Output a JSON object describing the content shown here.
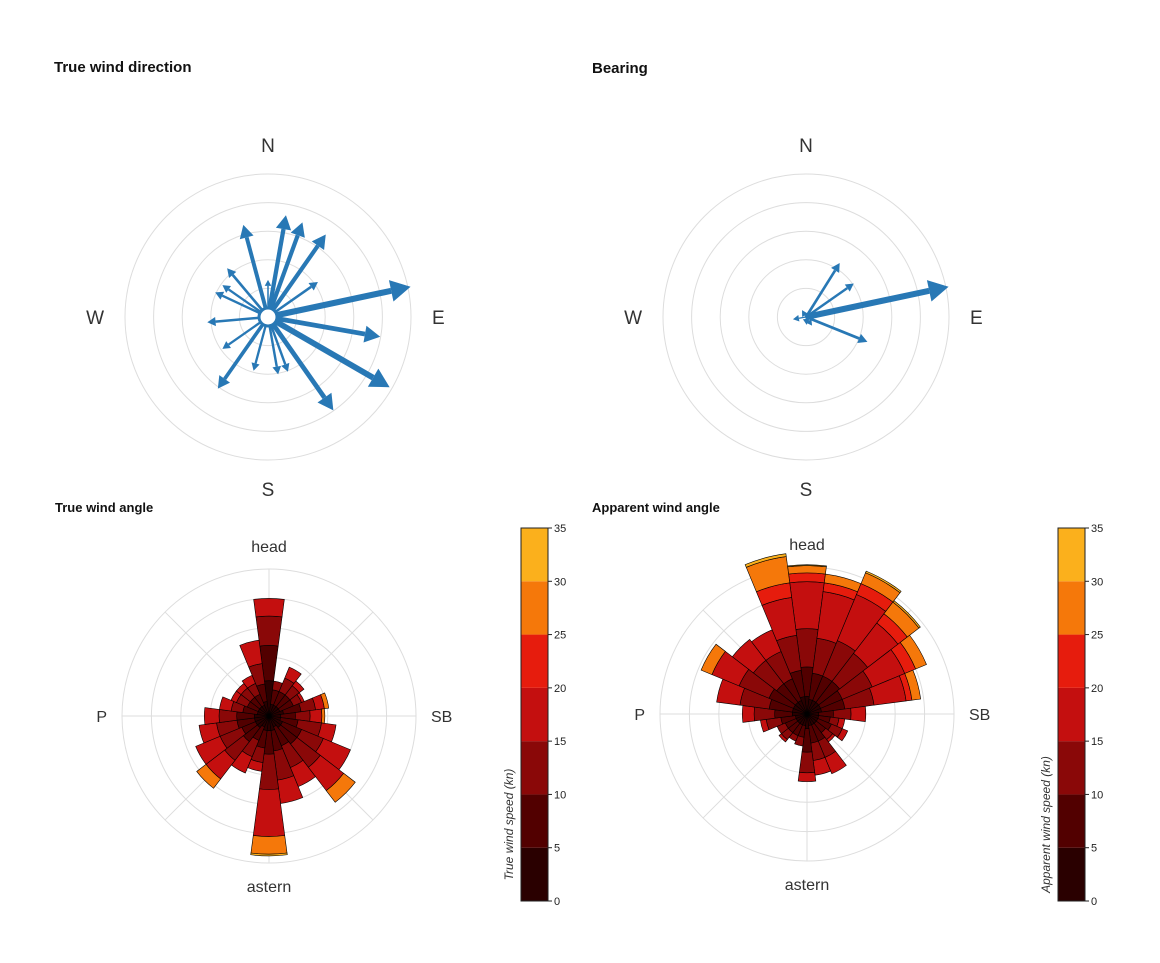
{
  "chart_data": [
    {
      "type": "vector-rose",
      "title": "True wind direction",
      "direction_labels": [
        "N",
        "E",
        "S",
        "W"
      ],
      "ring_count": 5,
      "arrow_color": "#2878b5",
      "vectors": [
        {
          "bearing": 10,
          "magnitude": 3.9
        },
        {
          "bearing": 20,
          "magnitude": 3.8
        },
        {
          "bearing": 35,
          "magnitude": 3.8
        },
        {
          "bearing": 55,
          "magnitude": 2.3
        },
        {
          "bearing": 78,
          "magnitude": 5.5
        },
        {
          "bearing": 100,
          "magnitude": 4.3
        },
        {
          "bearing": 120,
          "magnitude": 5.3
        },
        {
          "bearing": 145,
          "magnitude": 4.3
        },
        {
          "bearing": 160,
          "magnitude": 2.2
        },
        {
          "bearing": 170,
          "magnitude": 2.2
        },
        {
          "bearing": 195,
          "magnitude": 2.1
        },
        {
          "bearing": 215,
          "magnitude": 3.3
        },
        {
          "bearing": 235,
          "magnitude": 2.1
        },
        {
          "bearing": 265,
          "magnitude": 2.3
        },
        {
          "bearing": 295,
          "magnitude": 2.2
        },
        {
          "bearing": 305,
          "magnitude": 2.1
        },
        {
          "bearing": 320,
          "magnitude": 2.4
        },
        {
          "bearing": 345,
          "magnitude": 3.6
        },
        {
          "bearing": 360,
          "magnitude": 1.4
        }
      ]
    },
    {
      "type": "vector-rose",
      "title": "Bearing",
      "direction_labels": [
        "N",
        "E",
        "S",
        "W"
      ],
      "ring_count": 5,
      "arrow_color": "#2878b5",
      "vectors": [
        {
          "bearing": 32,
          "magnitude": 2.4
        },
        {
          "bearing": 55,
          "magnitude": 2.2
        },
        {
          "bearing": 78,
          "magnitude": 5.5
        },
        {
          "bearing": 112,
          "magnitude": 2.5
        },
        {
          "bearing": 145,
          "magnitude": 0.4
        },
        {
          "bearing": 175,
          "magnitude": 0.3
        },
        {
          "bearing": 260,
          "magnitude": 0.5
        },
        {
          "bearing": 330,
          "magnitude": 0.3
        }
      ]
    },
    {
      "type": "wind-rose",
      "title": "True wind angle",
      "direction_labels": [
        "head",
        "SB",
        "astern",
        "P"
      ],
      "ring_count": 5,
      "bin_edges": [
        0,
        5,
        10,
        15,
        20,
        25,
        30,
        35
      ],
      "bin_colors": [
        "#2a0000",
        "#520000",
        "#8a0808",
        "#c40f0f",
        "#e61c0d",
        "#f5780a",
        "#fbb01c",
        "#f8ee28"
      ],
      "sectors": [
        {
          "angle": 0,
          "counts": [
            1.2,
            1.2,
            1.0,
            0.6,
            0,
            0,
            0
          ]
        },
        {
          "angle": 15,
          "counts": [
            0.4,
            0.5,
            0.3,
            0,
            0,
            0,
            0
          ]
        },
        {
          "angle": 30,
          "counts": [
            0.4,
            0.5,
            0.5,
            0.4,
            0,
            0,
            0
          ]
        },
        {
          "angle": 45,
          "counts": [
            0.4,
            0.5,
            0.4,
            0.2,
            0,
            0,
            0
          ]
        },
        {
          "angle": 60,
          "counts": [
            0.4,
            0.5,
            0.3,
            0.1,
            0,
            0,
            0
          ]
        },
        {
          "angle": 75,
          "counts": [
            0.5,
            0.6,
            0.5,
            0.3,
            0,
            0.15,
            0
          ]
        },
        {
          "angle": 90,
          "counts": [
            0.4,
            0.5,
            0.5,
            0.4,
            0,
            0.1,
            0
          ]
        },
        {
          "angle": 105,
          "counts": [
            0.4,
            0.6,
            0.8,
            0.5,
            0,
            0,
            0
          ]
        },
        {
          "angle": 120,
          "counts": [
            0.5,
            0.7,
            0.8,
            1.0,
            0,
            0,
            0
          ]
        },
        {
          "angle": 135,
          "counts": [
            0.5,
            0.7,
            1.0,
            1.0,
            0,
            0.5,
            0
          ]
        },
        {
          "angle": 150,
          "counts": [
            0.4,
            0.7,
            0.8,
            0.7,
            0,
            0,
            0
          ]
        },
        {
          "angle": 165,
          "counts": [
            0.5,
            0.7,
            1.0,
            0.8,
            0,
            0,
            0
          ]
        },
        {
          "angle": 180,
          "counts": [
            0.5,
            0.8,
            1.2,
            1.6,
            0,
            0.6,
            0.06
          ]
        },
        {
          "angle": 195,
          "counts": [
            0.5,
            0.6,
            0.5,
            0.3,
            0,
            0,
            0
          ]
        },
        {
          "angle": 210,
          "counts": [
            0.4,
            0.5,
            0.6,
            0.6,
            0,
            0,
            0
          ]
        },
        {
          "angle": 225,
          "counts": [
            0.5,
            0.6,
            0.8,
            0.8,
            0,
            0.4,
            0
          ]
        },
        {
          "angle": 240,
          "counts": [
            0.5,
            0.5,
            0.8,
            0.9,
            0,
            0,
            0
          ]
        },
        {
          "angle": 255,
          "counts": [
            0.5,
            0.6,
            0.7,
            0.6,
            0,
            0,
            0
          ]
        },
        {
          "angle": 270,
          "counts": [
            0.5,
            0.6,
            0.6,
            0.5,
            0,
            0,
            0
          ]
        },
        {
          "angle": 285,
          "counts": [
            0.4,
            0.5,
            0.4,
            0.4,
            0,
            0,
            0
          ]
        },
        {
          "angle": 300,
          "counts": [
            0.4,
            0.4,
            0.4,
            0.2,
            0,
            0,
            0
          ]
        },
        {
          "angle": 315,
          "counts": [
            0.4,
            0.4,
            0.4,
            0.2,
            0,
            0,
            0
          ]
        },
        {
          "angle": 330,
          "counts": [
            0.4,
            0.4,
            0.4,
            0.3,
            0,
            0,
            0
          ]
        },
        {
          "angle": 345,
          "counts": [
            0.5,
            0.6,
            0.7,
            0.8,
            0,
            0,
            0
          ]
        }
      ],
      "colorbar": {
        "label": "True wind speed (kn)",
        "ticks": [
          "0",
          "5",
          "10",
          "15",
          "20",
          "25",
          "30",
          "35"
        ]
      }
    },
    {
      "type": "wind-rose",
      "title": "Apparent wind angle",
      "direction_labels": [
        "head",
        "SB",
        "astern",
        "P"
      ],
      "ring_count": 5,
      "bin_edges": [
        0,
        5,
        10,
        15,
        20,
        25,
        30,
        35
      ],
      "bin_colors": [
        "#2a0000",
        "#520000",
        "#8a0808",
        "#c40f0f",
        "#e61c0d",
        "#f5780a",
        "#fbb01c",
        "#f8ee28"
      ],
      "sectors": [
        {
          "angle": 0,
          "counts": [
            0.6,
            1.0,
            1.3,
            1.6,
            0.3,
            0.25,
            0.03
          ]
        },
        {
          "angle": 15,
          "counts": [
            0.5,
            0.9,
            1.2,
            1.6,
            0.3,
            0.3,
            0
          ]
        },
        {
          "angle": 30,
          "counts": [
            0.5,
            0.9,
            1.3,
            1.7,
            0.4,
            0.4,
            0.06
          ]
        },
        {
          "angle": 45,
          "counts": [
            0.5,
            0.9,
            1.2,
            1.3,
            0.4,
            0.5,
            0.06
          ]
        },
        {
          "angle": 60,
          "counts": [
            0.5,
            0.8,
            1.1,
            1.2,
            0.4,
            0.4,
            0
          ]
        },
        {
          "angle": 75,
          "counts": [
            0.5,
            0.8,
            1.0,
            1.1,
            0.2,
            0.3,
            0
          ]
        },
        {
          "angle": 90,
          "counts": [
            0.4,
            0.5,
            0.6,
            0.5,
            0,
            0,
            0
          ]
        },
        {
          "angle": 105,
          "counts": [
            0.4,
            0.4,
            0.3,
            0.2,
            0,
            0,
            0
          ]
        },
        {
          "angle": 120,
          "counts": [
            0.4,
            0.5,
            0.4,
            0.2,
            0,
            0,
            0
          ]
        },
        {
          "angle": 135,
          "counts": [
            0.4,
            0.4,
            0.3,
            0.1,
            0,
            0,
            0
          ]
        },
        {
          "angle": 150,
          "counts": [
            0.4,
            0.6,
            0.6,
            0.6,
            0,
            0,
            0
          ]
        },
        {
          "angle": 165,
          "counts": [
            0.4,
            0.6,
            0.6,
            0.5,
            0,
            0,
            0
          ]
        },
        {
          "angle": 180,
          "counts": [
            0.5,
            0.8,
            0.7,
            0.3,
            0,
            0,
            0
          ]
        },
        {
          "angle": 195,
          "counts": [
            0.4,
            0.4,
            0.3,
            0,
            0,
            0,
            0
          ]
        },
        {
          "angle": 210,
          "counts": [
            0.4,
            0.4,
            0.2,
            0,
            0,
            0,
            0
          ]
        },
        {
          "angle": 225,
          "counts": [
            0.4,
            0.4,
            0.3,
            0.1,
            0,
            0,
            0
          ]
        },
        {
          "angle": 240,
          "counts": [
            0.4,
            0.4,
            0.3,
            0,
            0,
            0,
            0
          ]
        },
        {
          "angle": 255,
          "counts": [
            0.4,
            0.5,
            0.5,
            0.2,
            0,
            0,
            0
          ]
        },
        {
          "angle": 270,
          "counts": [
            0.5,
            0.6,
            0.7,
            0.4,
            0,
            0,
            0
          ]
        },
        {
          "angle": 285,
          "counts": [
            0.5,
            0.8,
            1.0,
            0.8,
            0,
            0,
            0
          ]
        },
        {
          "angle": 300,
          "counts": [
            0.5,
            0.9,
            1.1,
            1.0,
            0,
            0.4,
            0
          ]
        },
        {
          "angle": 315,
          "counts": [
            0.5,
            0.8,
            1.0,
            0.9,
            0,
            0,
            0
          ]
        },
        {
          "angle": 330,
          "counts": [
            0.5,
            0.8,
            1.0,
            0.8,
            0,
            0,
            0
          ]
        },
        {
          "angle": 345,
          "counts": [
            0.6,
            0.9,
            1.2,
            1.3,
            0.5,
            0.9,
            0.1
          ]
        }
      ],
      "colorbar": {
        "label": "Apparent wind speed (kn)",
        "ticks": [
          "0",
          "5",
          "10",
          "15",
          "20",
          "25",
          "30",
          "35"
        ]
      }
    }
  ]
}
